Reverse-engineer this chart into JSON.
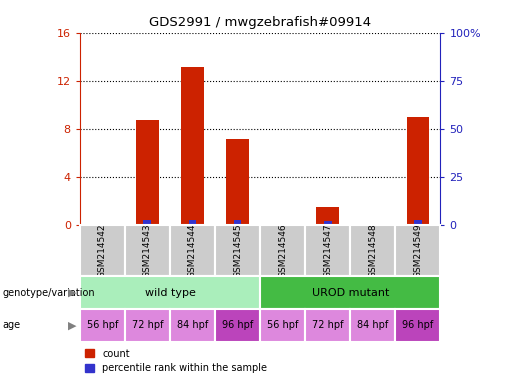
{
  "title": "GDS2991 / mwgzebrafish#09914",
  "samples": [
    "GSM214542",
    "GSM214543",
    "GSM214544",
    "GSM214545",
    "GSM214546",
    "GSM214547",
    "GSM214548",
    "GSM214549"
  ],
  "counts": [
    0.0,
    8.7,
    13.1,
    7.1,
    0.0,
    1.5,
    0.0,
    9.0
  ],
  "percentiles": [
    0.0,
    2.5,
    2.5,
    2.5,
    0.0,
    2.0,
    0.0,
    2.5
  ],
  "ylim_left": [
    0,
    16
  ],
  "ylim_right": [
    0,
    100
  ],
  "yticks_left": [
    0,
    4,
    8,
    12,
    16
  ],
  "yticks_right": [
    0,
    25,
    50,
    75,
    100
  ],
  "yticklabels_right": [
    "0",
    "25",
    "50",
    "75",
    "100%"
  ],
  "bar_color_red": "#CC2200",
  "bar_color_blue": "#3333CC",
  "bar_width": 0.5,
  "genotype_groups": [
    {
      "label": "wild type",
      "start": 0,
      "end": 3,
      "color": "#AAEEBB"
    },
    {
      "label": "UROD mutant",
      "start": 4,
      "end": 7,
      "color": "#44BB44"
    }
  ],
  "age_labels": [
    "56 hpf",
    "72 hpf",
    "84 hpf",
    "96 hpf",
    "56 hpf",
    "72 hpf",
    "84 hpf",
    "96 hpf"
  ],
  "age_colors": [
    "#DD88DD",
    "#DD88DD",
    "#DD88DD",
    "#BB44BB",
    "#DD88DD",
    "#DD88DD",
    "#DD88DD",
    "#BB44BB"
  ],
  "label_genotype": "genotype/variation",
  "label_age": "age",
  "legend_red": "count",
  "legend_blue": "percentile rank within the sample",
  "axis_label_color_left": "#CC2200",
  "axis_label_color_right": "#2222BB",
  "tick_bg_color": "#CCCCCC",
  "border_color": "#888888"
}
